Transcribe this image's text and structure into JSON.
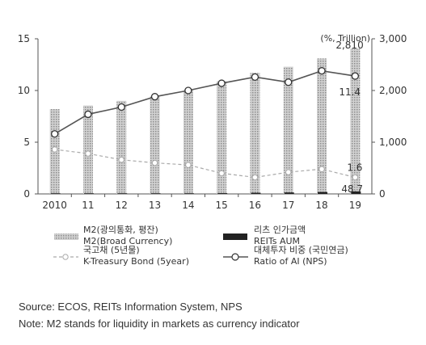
{
  "chart_data": {
    "type": "bar",
    "unit_label": "(%, Trillion)",
    "categories": [
      "2010",
      "11",
      "12",
      "13",
      "14",
      "15",
      "16",
      "17",
      "18",
      "19"
    ],
    "left_axis": {
      "ticks": [
        "0",
        "5",
        "10",
        "15"
      ],
      "ylim": [
        0,
        15
      ]
    },
    "right_axis": {
      "ticks": [
        "0",
        "1,000",
        "2,000",
        "3,000"
      ],
      "ylim": [
        0,
        3000
      ]
    },
    "grid": false,
    "legend_position": "bottom",
    "series": [
      {
        "name_ko": "M2(광의통화, 평잔)",
        "name": "M2(Broad Currency)",
        "kind": "bar",
        "axis": "right",
        "pattern": "dotted",
        "color": "#b5b5b5",
        "values": [
          1640,
          1710,
          1800,
          1890,
          2000,
          2180,
          2340,
          2460,
          2620,
          2810
        ]
      },
      {
        "name_ko": "리츠 인가금액",
        "name": "REITs AUM",
        "kind": "bar",
        "axis": "right",
        "color": "#222222",
        "values": [
          4,
          5,
          6,
          8,
          10,
          15,
          22,
          28,
          38,
          48.7
        ]
      },
      {
        "name_ko": "국고채 (5년물)",
        "name": "K-Treasury Bond (5year)",
        "kind": "line",
        "axis": "left",
        "dash": true,
        "color": "#aaaaaa",
        "values": [
          4.3,
          3.9,
          3.3,
          3.0,
          2.8,
          2.0,
          1.6,
          2.1,
          2.4,
          1.6
        ]
      },
      {
        "name_ko": "대체투자 비중 (국민연금)",
        "name": "Ratio of AI (NPS)",
        "kind": "line",
        "axis": "left",
        "dash": false,
        "color": "#555555",
        "values": [
          5.8,
          7.7,
          8.4,
          9.4,
          10.0,
          10.7,
          11.3,
          10.8,
          11.9,
          11.4
        ]
      }
    ],
    "annotations": [
      "2,810",
      "11.4",
      "1.6",
      "48.7"
    ]
  },
  "notes": {
    "source": "Source: ECOS, REITs Information System, NPS",
    "note": "Note: M2 stands for liquidity in markets as currency indicator"
  }
}
